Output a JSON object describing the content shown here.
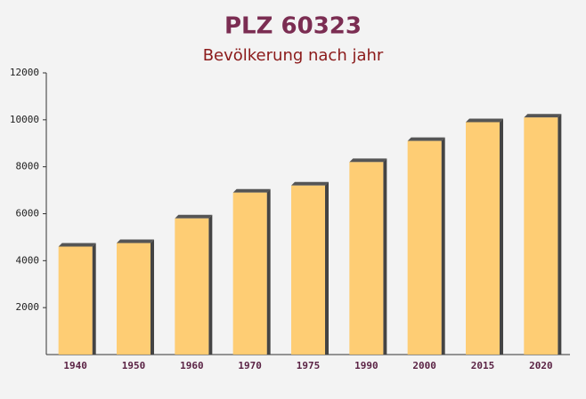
{
  "chart_data": {
    "type": "bar",
    "title": "PLZ 60323",
    "subtitle": "Bevölkerung nach jahr",
    "categories": [
      "1940",
      "1950",
      "1960",
      "1970",
      "1975",
      "1990",
      "2000",
      "2015",
      "2020"
    ],
    "values": [
      4600,
      4750,
      5800,
      6900,
      7200,
      8200,
      9100,
      9900,
      10100
    ],
    "color": "#ffc966",
    "ylim": [
      0,
      12000
    ],
    "yticks": [
      2000,
      4000,
      6000,
      8000,
      10000,
      12000
    ],
    "grid": false
  }
}
